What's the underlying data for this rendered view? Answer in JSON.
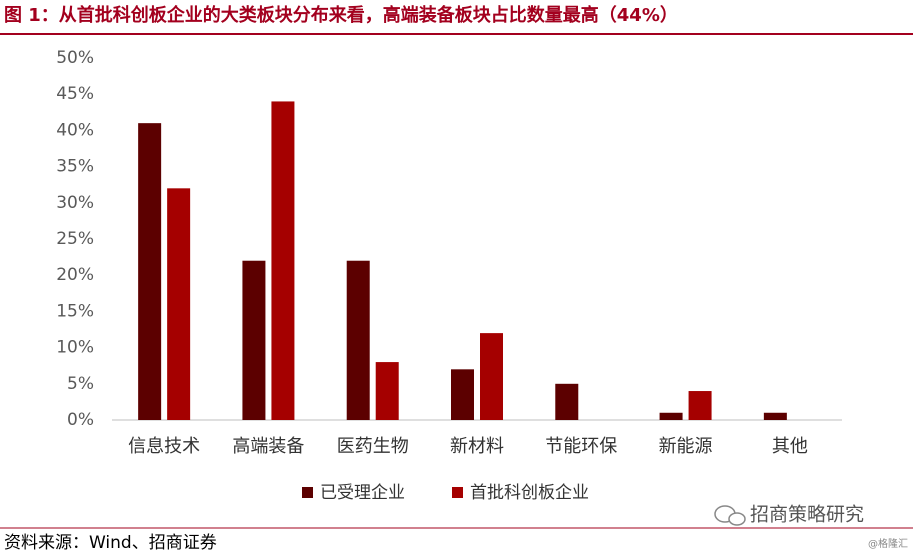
{
  "chart_data": {
    "type": "bar",
    "title": "图 1：从首批科创板企业的大类板块分布来看，高端装备板块占比数量最高（44%）",
    "categories": [
      "信息技术",
      "高端装备",
      "医药生物",
      "新材料",
      "节能环保",
      "新能源",
      "其他"
    ],
    "series": [
      {
        "name": "已受理企业",
        "color": "#5c0000",
        "values": [
          41,
          22,
          22,
          7,
          5,
          1,
          1
        ]
      },
      {
        "name": "首批科创板企业",
        "color": "#a50000",
        "values": [
          32,
          44,
          8,
          12,
          0,
          4,
          0
        ]
      }
    ],
    "ylim": [
      0,
      50
    ],
    "yticks": [
      {
        "value": 0,
        "label": "0%"
      },
      {
        "value": 5,
        "label": "5%"
      },
      {
        "value": 10,
        "label": "10%"
      },
      {
        "value": 15,
        "label": "15%"
      },
      {
        "value": 20,
        "label": "20%"
      },
      {
        "value": 25,
        "label": "25%"
      },
      {
        "value": 30,
        "label": "30%"
      },
      {
        "value": 35,
        "label": "35%"
      },
      {
        "value": 40,
        "label": "40%"
      },
      {
        "value": 45,
        "label": "45%"
      },
      {
        "value": 50,
        "label": "50%"
      }
    ],
    "grid": false,
    "legend": "bottom",
    "source": "资料来源：Wind、招商证券",
    "watermark": "招商策略研究",
    "credit": "@格隆汇"
  }
}
